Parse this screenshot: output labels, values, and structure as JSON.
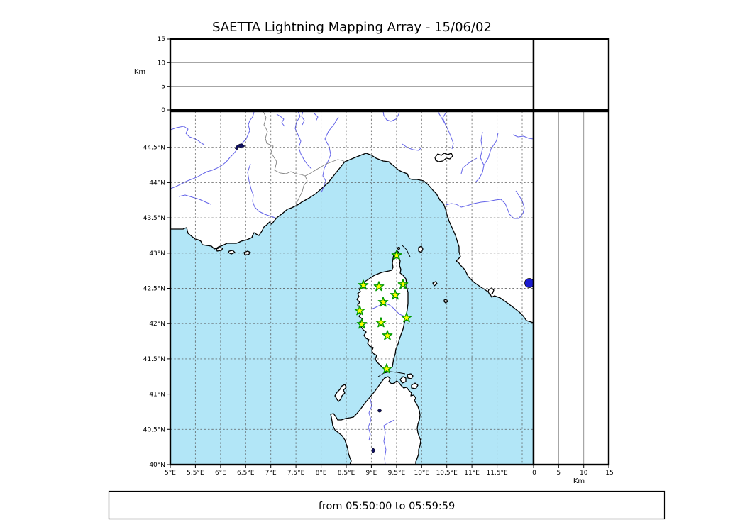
{
  "title": "SAETTA Lightning Mapping Array - 15/06/02",
  "footer": {
    "text": "from 05:50:00 to 05:59:59"
  },
  "axes": {
    "altitude_top": {
      "unit_label": "Km",
      "ticks": [
        "0",
        "5",
        "10",
        "15"
      ]
    },
    "altitude_right": {
      "unit_label": "Km",
      "ticks": [
        "0",
        "5",
        "10",
        "15"
      ]
    },
    "latitude_ticks": [
      "44.5°N",
      "44°N",
      "43.5°N",
      "43°N",
      "42.5°N",
      "42°N",
      "41.5°N",
      "41°N",
      "40.5°N",
      "40°N"
    ],
    "longitude_ticks": [
      "5°E",
      "5.5°E",
      "6°E",
      "6.5°E",
      "7°E",
      "7.5°E",
      "8°E",
      "8.5°E",
      "9°E",
      "9.5°E",
      "10°E",
      "10.5°E",
      "11°E",
      "11.5°E"
    ]
  },
  "colors": {
    "sea": "#b2e6f7",
    "land": "#ffffff",
    "coast": "#000000",
    "river": "#6363e8",
    "national-border": "#808080",
    "grid": "#555555",
    "lake-dark": "#101060",
    "lake-blue": "#1c1ccf",
    "star-fill": "#ffff00",
    "star-edge": "#009900"
  },
  "chart_data": {
    "type": "scatter",
    "title": "SAETTA Lightning Mapping Array - 15/06/02",
    "time_window": "from 05:50:00 to 05:59:59",
    "panels": {
      "map": {
        "xlabel_ticks": [
          "5°E",
          "5.5°E",
          "6°E",
          "6.5°E",
          "7°E",
          "7.5°E",
          "8°E",
          "8.5°E",
          "9°E",
          "9.5°E",
          "10°E",
          "10.5°E",
          "11°E",
          "11.5°E"
        ],
        "ylabel_ticks": [
          "44.5°N",
          "44°N",
          "43.5°N",
          "43°N",
          "42.5°N",
          "42°N",
          "41.5°N",
          "41°N",
          "40.5°N",
          "40°N"
        ],
        "xlim_deg_east": [
          5.0,
          12.2
        ],
        "ylim_deg_north": [
          40.0,
          45.0
        ],
        "grid": true,
        "region": "Corsica, Ligurian Sea, SE France, NW Italy, N Sardinia"
      },
      "altitude_top": {
        "axis_label": "Km",
        "range_km": [
          0,
          15
        ],
        "gridlines_km": [
          5,
          10
        ],
        "points": []
      },
      "altitude_right": {
        "axis_label": "Km",
        "range_km": [
          0,
          15
        ],
        "gridlines_km": [
          5,
          10
        ],
        "points": []
      }
    },
    "stations": [
      {
        "lon_e": 9.52,
        "lat_n": 42.97,
        "px": [
          559,
          360
        ]
      },
      {
        "lon_e": 8.85,
        "lat_n": 42.55,
        "px": [
          512,
          402
        ]
      },
      {
        "lon_e": 9.16,
        "lat_n": 42.53,
        "px": [
          534,
          404
        ]
      },
      {
        "lon_e": 9.65,
        "lat_n": 42.56,
        "px": [
          568,
          401
        ]
      },
      {
        "lon_e": 9.49,
        "lat_n": 42.4,
        "px": [
          557,
          416
        ]
      },
      {
        "lon_e": 9.25,
        "lat_n": 42.3,
        "px": [
          540,
          426
        ]
      },
      {
        "lon_e": 8.78,
        "lat_n": 42.18,
        "px": [
          507,
          438
        ]
      },
      {
        "lon_e": 9.72,
        "lat_n": 42.08,
        "px": [
          573,
          448
        ]
      },
      {
        "lon_e": 9.21,
        "lat_n": 42.01,
        "px": [
          537,
          455
        ]
      },
      {
        "lon_e": 8.82,
        "lat_n": 41.99,
        "px": [
          510,
          457
        ]
      },
      {
        "lon_e": 9.33,
        "lat_n": 41.83,
        "px": [
          546,
          473
        ]
      },
      {
        "lon_e": 9.32,
        "lat_n": 41.36,
        "px": [
          545,
          520
        ]
      }
    ],
    "lightning_detections": []
  }
}
